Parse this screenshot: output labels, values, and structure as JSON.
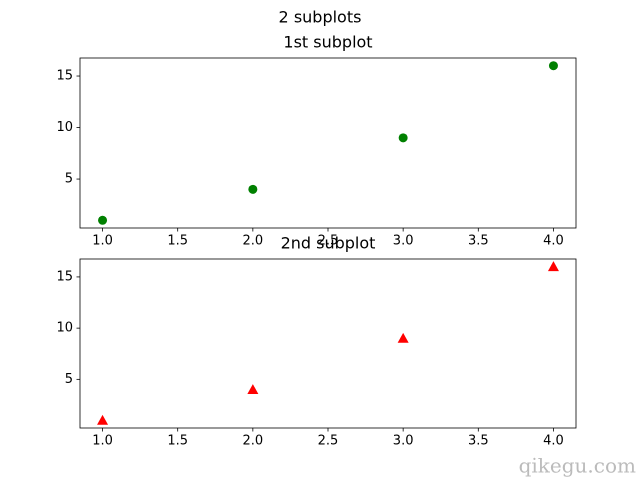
{
  "title": "2 subplots",
  "watermark": "qikegu.com",
  "chart_data": [
    {
      "type": "scatter",
      "title": "1st subplot",
      "x": [
        1,
        2,
        3,
        4
      ],
      "values": [
        1,
        4,
        9,
        16
      ],
      "color": "#008000",
      "marker": "o",
      "xlim": [
        0.85,
        4.15
      ],
      "ylim": [
        0.25,
        16.75
      ],
      "xticks": [
        {
          "value": 1,
          "label": "1.0"
        },
        1.5,
        {
          "value": 2,
          "label": "2.0"
        },
        2.5,
        {
          "value": 3,
          "label": "3.0"
        },
        3.5,
        {
          "value": 4,
          "label": "4.0"
        }
      ],
      "yticks": [
        5,
        10,
        15
      ],
      "grid": false
    },
    {
      "type": "scatter",
      "title": "2nd subplot",
      "x": [
        1,
        2,
        3,
        4
      ],
      "values": [
        1,
        4,
        9,
        16
      ],
      "color": "#ff0000",
      "marker": "^",
      "xlim": [
        0.85,
        4.15
      ],
      "ylim": [
        0.25,
        16.75
      ],
      "xticks": [
        {
          "value": 1,
          "label": "1.0"
        },
        1.5,
        {
          "value": 2,
          "label": "2.0"
        },
        2.5,
        {
          "value": 3,
          "label": "3.0"
        },
        3.5,
        {
          "value": 4,
          "label": "4.0"
        }
      ],
      "yticks": [
        5,
        10,
        15
      ],
      "grid": false
    }
  ]
}
